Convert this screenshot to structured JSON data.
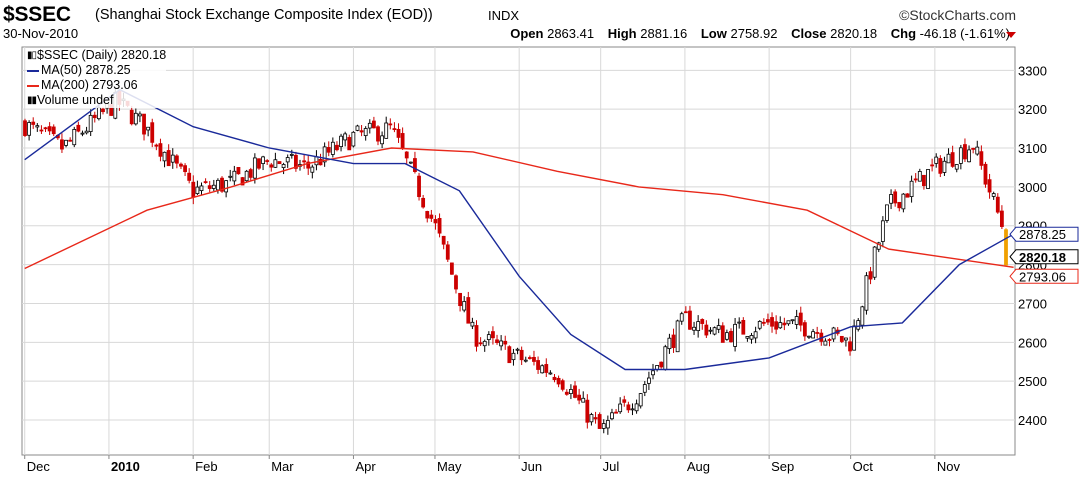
{
  "header": {
    "symbol": "$SSEC",
    "description": "(Shanghai Stock Exchange Composite Index (EOD))",
    "exchange": "INDX",
    "brand": "©StockCharts.com",
    "date": "30-Nov-2010",
    "open_label": "Open",
    "open": "2863.41",
    "high_label": "High",
    "high": "2881.16",
    "low_label": "Low",
    "low": "2758.92",
    "close_label": "Close",
    "close": "2820.18",
    "chg_label": "Chg",
    "chg": "-46.18 (-1.61%)"
  },
  "legend": {
    "price": "$SSEC (Daily) 2820.18",
    "ma50": "MA(50) 2878.25",
    "ma200": "MA(200) 2793.06",
    "volume": "Volume undef"
  },
  "colors": {
    "ma50": "#1a2a9a",
    "ma200": "#e8281a",
    "up": "#000000",
    "down": "#cc0000",
    "grid": "#d8d8d8",
    "last_bar": "#f0a000"
  },
  "chart_data": {
    "type": "line",
    "title": "$SSEC (Daily) 2820.18",
    "ylim": [
      2310,
      3360
    ],
    "yticks": [
      2400,
      2500,
      2600,
      2700,
      2800,
      2900,
      3000,
      3100,
      3200,
      3300
    ],
    "xtick_labels": [
      "Dec",
      "2010",
      "Feb",
      "Mar",
      "Apr",
      "May",
      "Jun",
      "Jul",
      "Aug",
      "Sep",
      "Oct",
      "Nov"
    ],
    "grid": true,
    "legend_position": "top-left",
    "right_labels": {
      "ma50": "2878.25",
      "close": "2820.18",
      "ma200": "2793.06"
    },
    "series": [
      {
        "name": "$SSEC (Daily)",
        "style": "candlestick",
        "x": [
          "2009-12-01",
          "2009-12-15",
          "2010-01-04",
          "2010-01-15",
          "2010-02-01",
          "2010-02-15",
          "2010-03-01",
          "2010-03-15",
          "2010-04-01",
          "2010-04-15",
          "2010-05-01",
          "2010-05-15",
          "2010-06-01",
          "2010-06-15",
          "2010-07-01",
          "2010-07-15",
          "2010-08-01",
          "2010-08-15",
          "2010-09-01",
          "2010-09-15",
          "2010-10-01",
          "2010-10-15",
          "2010-11-01",
          "2010-11-15",
          "2010-11-30"
        ],
        "close": [
          3160,
          3100,
          3220,
          3150,
          2990,
          3010,
          3070,
          3050,
          3130,
          3150,
          2900,
          2620,
          2560,
          2520,
          2370,
          2470,
          2660,
          2620,
          2650,
          2640,
          2600,
          2950,
          3050,
          3110,
          2820.18
        ]
      },
      {
        "name": "MA(50)",
        "x": [
          "2009-12-01",
          "2010-01-05",
          "2010-02-01",
          "2010-03-01",
          "2010-04-01",
          "2010-04-20",
          "2010-05-10",
          "2010-06-01",
          "2010-06-20",
          "2010-07-10",
          "2010-08-01",
          "2010-09-01",
          "2010-10-01",
          "2010-10-20",
          "2010-11-10",
          "2010-11-30"
        ],
        "values": [
          3070,
          3250,
          3155,
          3100,
          3060,
          3060,
          2990,
          2770,
          2620,
          2530,
          2530,
          2560,
          2640,
          2650,
          2800,
          2878.25
        ]
      },
      {
        "name": "MA(200)",
        "x": [
          "2009-12-01",
          "2010-01-15",
          "2010-02-15",
          "2010-03-15",
          "2010-04-15",
          "2010-05-15",
          "2010-06-15",
          "2010-07-15",
          "2010-08-15",
          "2010-09-15",
          "2010-10-15",
          "2010-11-30"
        ],
        "values": [
          2790,
          2940,
          3000,
          3060,
          3100,
          3090,
          3040,
          3000,
          2980,
          2940,
          2840,
          2793.06
        ]
      }
    ]
  }
}
